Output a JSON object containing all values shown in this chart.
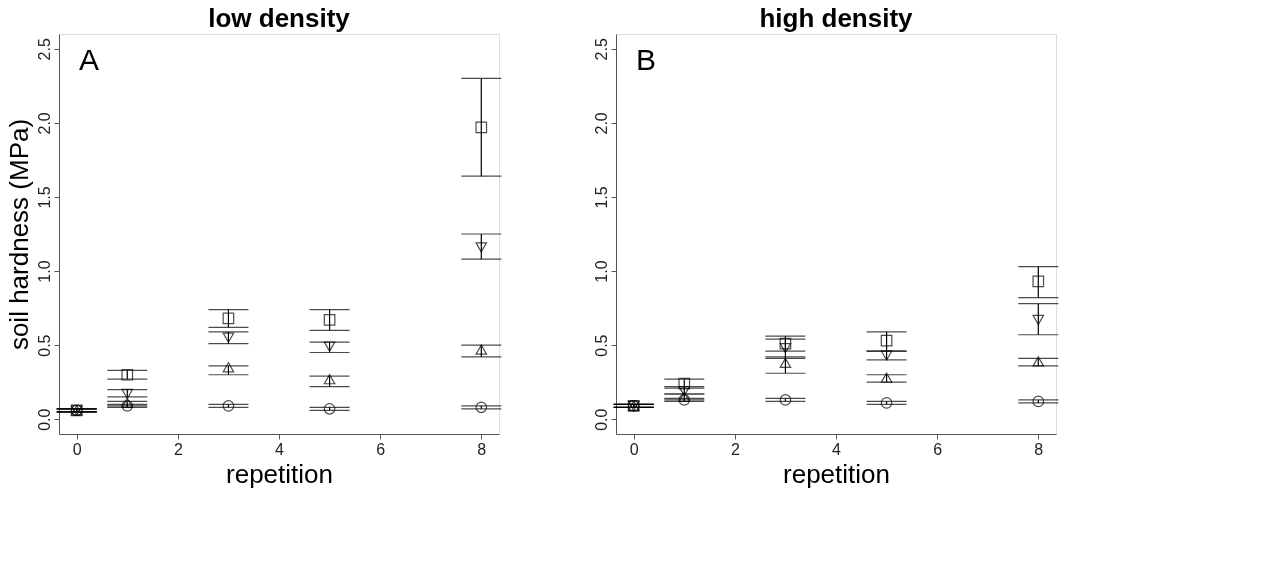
{
  "chart_data": [
    {
      "type": "scatter",
      "title": "low density",
      "xlabel": "repetition",
      "ylabel": "soil hardness (MPa)",
      "annotations": [
        "A"
      ],
      "x": [
        0,
        1,
        3,
        5,
        8
      ],
      "xlim": [
        -0.35,
        8.35
      ],
      "xticks": [
        0,
        2,
        4,
        6,
        8
      ],
      "ylim": [
        -0.1,
        2.6
      ],
      "yticks": [
        {
          "value": 0,
          "label": "0.0"
        },
        0.5,
        {
          "value": 1,
          "label": "1.0"
        },
        1.5,
        {
          "value": 2,
          "label": "2.0"
        },
        2.5
      ],
      "grid": false,
      "series": [
        {
          "color": "#000000",
          "values": [
            0.06,
            0.3,
            0.68,
            0.67,
            1.97
          ],
          "errors": [
            [
              0.05,
              0.07
            ],
            [
              0.27,
              0.33
            ],
            [
              0.62,
              0.74
            ],
            [
              0.6,
              0.74
            ],
            [
              1.64,
              2.3
            ]
          ]
        },
        {
          "color": "#000000",
          "values": [
            0.06,
            0.17,
            0.55,
            0.49,
            1.16
          ],
          "errors": [
            [
              0.05,
              0.07
            ],
            [
              0.15,
              0.2
            ],
            [
              0.51,
              0.59
            ],
            [
              0.45,
              0.52
            ],
            [
              1.08,
              1.25
            ]
          ]
        },
        {
          "color": "#000000",
          "values": [
            0.06,
            0.11,
            0.35,
            0.27,
            0.47
          ],
          "errors": [
            [
              0.05,
              0.07
            ],
            [
              0.09,
              0.12
            ],
            [
              0.3,
              0.36
            ],
            [
              0.22,
              0.29
            ],
            [
              0.42,
              0.5
            ]
          ]
        },
        {
          "color": "#000000",
          "values": [
            0.06,
            0.09,
            0.09,
            0.07,
            0.08
          ],
          "errors": [
            [
              0.05,
              0.07
            ],
            [
              0.08,
              0.1
            ],
            [
              0.08,
              0.1
            ],
            [
              0.06,
              0.08
            ],
            [
              0.07,
              0.09
            ]
          ]
        }
      ]
    },
    {
      "type": "scatter",
      "title": "high density",
      "xlabel": "repetition",
      "annotations": [
        "B"
      ],
      "x": [
        0,
        1,
        3,
        5,
        8
      ],
      "xlim": [
        -0.35,
        8.35
      ],
      "xticks": [
        0,
        2,
        4,
        6,
        8
      ],
      "ylim": [
        -0.1,
        2.6
      ],
      "yticks": [
        {
          "value": 0,
          "label": "0.0"
        },
        0.5,
        {
          "value": 1,
          "label": "1.0"
        },
        1.5,
        {
          "value": 2,
          "label": "2.0"
        },
        2.5
      ],
      "grid": false,
      "series": [
        {
          "color": "#000000",
          "values": [
            0.09,
            0.24,
            0.51,
            0.53,
            0.93
          ],
          "errors": [
            [
              0.08,
              0.1
            ],
            [
              0.21,
              0.27
            ],
            [
              0.46,
              0.56
            ],
            [
              0.46,
              0.59
            ],
            [
              0.82,
              1.03
            ]
          ]
        },
        {
          "color": "#000000",
          "values": [
            0.09,
            0.19,
            0.48,
            0.43,
            0.67
          ],
          "errors": [
            [
              0.08,
              0.1
            ],
            [
              0.17,
              0.22
            ],
            [
              0.41,
              0.54
            ],
            [
              0.4,
              0.46
            ],
            [
              0.57,
              0.78
            ]
          ]
        },
        {
          "color": "#000000",
          "values": [
            0.09,
            0.15,
            0.38,
            0.28,
            0.39
          ],
          "errors": [
            [
              0.08,
              0.1
            ],
            [
              0.13,
              0.17
            ],
            [
              0.31,
              0.42
            ],
            [
              0.25,
              0.3
            ],
            [
              0.36,
              0.41
            ]
          ]
        },
        {
          "color": "#000000",
          "values": [
            0.09,
            0.13,
            0.13,
            0.11,
            0.12
          ],
          "errors": [
            [
              0.08,
              0.1
            ],
            [
              0.12,
              0.14
            ],
            [
              0.12,
              0.14
            ],
            [
              0.1,
              0.12
            ],
            [
              0.11,
              0.13
            ]
          ]
        }
      ]
    }
  ]
}
